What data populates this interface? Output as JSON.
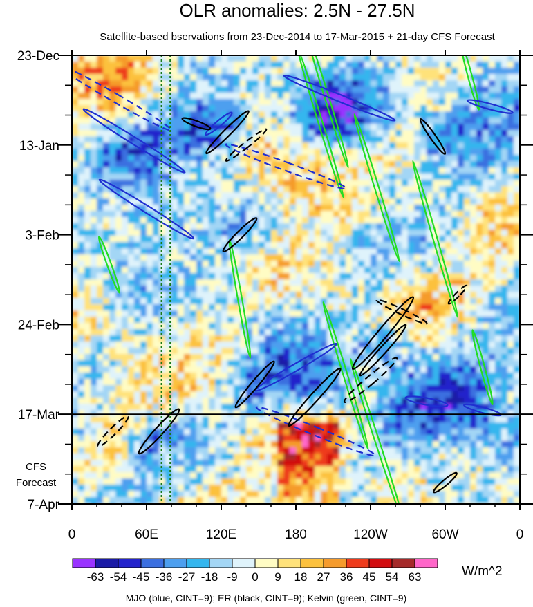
{
  "chart_data": {
    "type": "heatmap",
    "title": "OLR anomalies: 2.5N - 27.5N",
    "subtitle": "Satellite-based bservations from 23-Dec-2014 to 17-Mar-2015 + 21-day CFS Forecast",
    "x_ticks": [
      "0",
      "60E",
      "120E",
      "180",
      "120W",
      "60W",
      "0"
    ],
    "x_tick_lon": [
      0,
      60,
      120,
      180,
      240,
      300,
      360
    ],
    "xlim": [
      0,
      360
    ],
    "y_ticks": [
      "23-Dec",
      "13-Jan",
      "3-Feb",
      "24-Feb",
      "17-Mar",
      "7-Apr"
    ],
    "y_tick_day": [
      0,
      21,
      42,
      63,
      84,
      105
    ],
    "ylim": [
      0,
      105
    ],
    "observation_end_day": 84,
    "forecast_label": [
      "CFS",
      "Forecast"
    ],
    "reference_lines_lon": [
      72,
      79
    ],
    "colorbar": {
      "levels": [
        -63,
        -54,
        -45,
        -36,
        -27,
        -18,
        -9,
        0,
        9,
        18,
        27,
        36,
        45,
        54,
        63
      ],
      "labels": [
        "-63",
        "-54",
        "-45",
        "-36",
        "-27",
        "-18",
        "-9",
        "0",
        "9",
        "18",
        "27",
        "36",
        "45",
        "54",
        "63"
      ],
      "colors": [
        "#9933ff",
        "#1a1aa6",
        "#2323cc",
        "#3b6fe0",
        "#4d9fef",
        "#34b6ee",
        "#a3d6f5",
        "#dff3fb",
        "#fffcc4",
        "#ffe27a",
        "#fcc13d",
        "#f59b2c",
        "#ee3b1c",
        "#d20d10",
        "#a52a2a",
        "#ff66c9"
      ],
      "units": "W/m^2"
    },
    "contour_legend": "MJO (blue, CINT=9); ER (black, CINT=9); Kelvin (green, CINT=9)",
    "contour_colors": {
      "mjo": "#1f2fd0",
      "er": "#000000",
      "kelvin": "#22dd22"
    },
    "mjo_contours": [
      {
        "lon": 50,
        "day": 20,
        "len_days": 28,
        "angle": -58,
        "w": 5,
        "dash": false
      },
      {
        "lon": 35,
        "day": 10,
        "len_days": 30,
        "angle": -60,
        "w": 6,
        "dash": true
      },
      {
        "lon": 60,
        "day": 36,
        "len_days": 26,
        "angle": -58,
        "w": 5,
        "dash": false
      },
      {
        "lon": 172,
        "day": 26,
        "len_days": 30,
        "angle": -70,
        "w": 6,
        "dash": true
      },
      {
        "lon": 215,
        "day": 10,
        "len_days": 28,
        "angle": -68,
        "w": 5,
        "dash": false
      },
      {
        "lon": 196,
        "day": 88,
        "len_days": 30,
        "angle": -68,
        "w": 6,
        "dash": true
      },
      {
        "lon": 180,
        "day": 73,
        "len_days": 22,
        "angle": 60,
        "w": 5,
        "dash": false
      },
      {
        "lon": 285,
        "day": 81,
        "len_days": 10,
        "angle": -80,
        "w": 5,
        "dash": false
      },
      {
        "lon": 330,
        "day": 83,
        "len_days": 9,
        "angle": -75,
        "w": 4,
        "dash": false
      },
      {
        "lon": 118,
        "day": 16,
        "len_days": 8,
        "angle": 50,
        "w": 4,
        "dash": false
      },
      {
        "lon": 336,
        "day": 12,
        "len_days": 11,
        "angle": -75,
        "w": 4,
        "dash": false
      }
    ],
    "er_contours": [
      {
        "lon": 125,
        "day": 18,
        "len_days": 14,
        "angle": 45,
        "w": 5,
        "dash": false
      },
      {
        "lon": 140,
        "day": 21,
        "len_days": 12,
        "angle": 52,
        "w": 4,
        "dash": true
      },
      {
        "lon": 135,
        "day": 42,
        "len_days": 11,
        "angle": 45,
        "w": 5,
        "dash": false
      },
      {
        "lon": 250,
        "day": 65,
        "len_days": 22,
        "angle": 40,
        "w": 7,
        "dash": false
      },
      {
        "lon": 250,
        "day": 69,
        "len_days": 16,
        "angle": 42,
        "w": 5,
        "dash": false
      },
      {
        "lon": 240,
        "day": 76,
        "len_days": 16,
        "angle": 50,
        "w": 6,
        "dash": true
      },
      {
        "lon": 195,
        "day": 80,
        "len_days": 18,
        "angle": 42,
        "w": 6,
        "dash": false
      },
      {
        "lon": 147,
        "day": 77,
        "len_days": 14,
        "angle": 40,
        "w": 5,
        "dash": false
      },
      {
        "lon": 70,
        "day": 88,
        "len_days": 14,
        "angle": 42,
        "w": 6,
        "dash": false
      },
      {
        "lon": 33,
        "day": 88,
        "len_days": 10,
        "angle": 45,
        "w": 5,
        "dash": true
      },
      {
        "lon": 290,
        "day": 19,
        "len_days": 10,
        "angle": -35,
        "w": 4,
        "dash": false
      },
      {
        "lon": 100,
        "day": 16,
        "len_days": 7,
        "angle": -70,
        "w": 4,
        "dash": false
      },
      {
        "lon": 265,
        "day": 60,
        "len_days": 13,
        "angle": -65,
        "w": 4,
        "dash": true
      },
      {
        "lon": 300,
        "day": 100,
        "len_days": 7,
        "angle": 50,
        "w": 4,
        "dash": false
      },
      {
        "lon": 310,
        "day": 56,
        "len_days": 6,
        "angle": 45,
        "w": 3,
        "dash": true
      }
    ],
    "kelvin_contours": [
      {
        "lon": 205,
        "day": 10,
        "len_days": 34,
        "angle": -17,
        "w": 3,
        "dash": false
      },
      {
        "lon": 200,
        "day": 16,
        "len_days": 36,
        "angle": -17,
        "w": 3,
        "dash": false
      },
      {
        "lon": 245,
        "day": 31,
        "len_days": 36,
        "angle": -17,
        "w": 3,
        "dash": false
      },
      {
        "lon": 292,
        "day": 43,
        "len_days": 38,
        "angle": -16,
        "w": 3,
        "dash": false
      },
      {
        "lon": 135,
        "day": 57,
        "len_days": 28,
        "angle": -10,
        "w": 3,
        "dash": false
      },
      {
        "lon": 220,
        "day": 75,
        "len_days": 36,
        "angle": -17,
        "w": 3,
        "dash": false
      },
      {
        "lon": 245,
        "day": 90,
        "len_days": 40,
        "angle": -18,
        "w": 3,
        "dash": false
      },
      {
        "lon": 330,
        "day": 73,
        "len_days": 18,
        "angle": -15,
        "w": 3,
        "dash": false
      },
      {
        "lon": 30,
        "day": 49,
        "len_days": 14,
        "angle": -20,
        "w": 3,
        "dash": false
      },
      {
        "lon": 320,
        "day": 5,
        "len_days": 16,
        "angle": -15,
        "w": 3,
        "dash": false
      }
    ]
  }
}
